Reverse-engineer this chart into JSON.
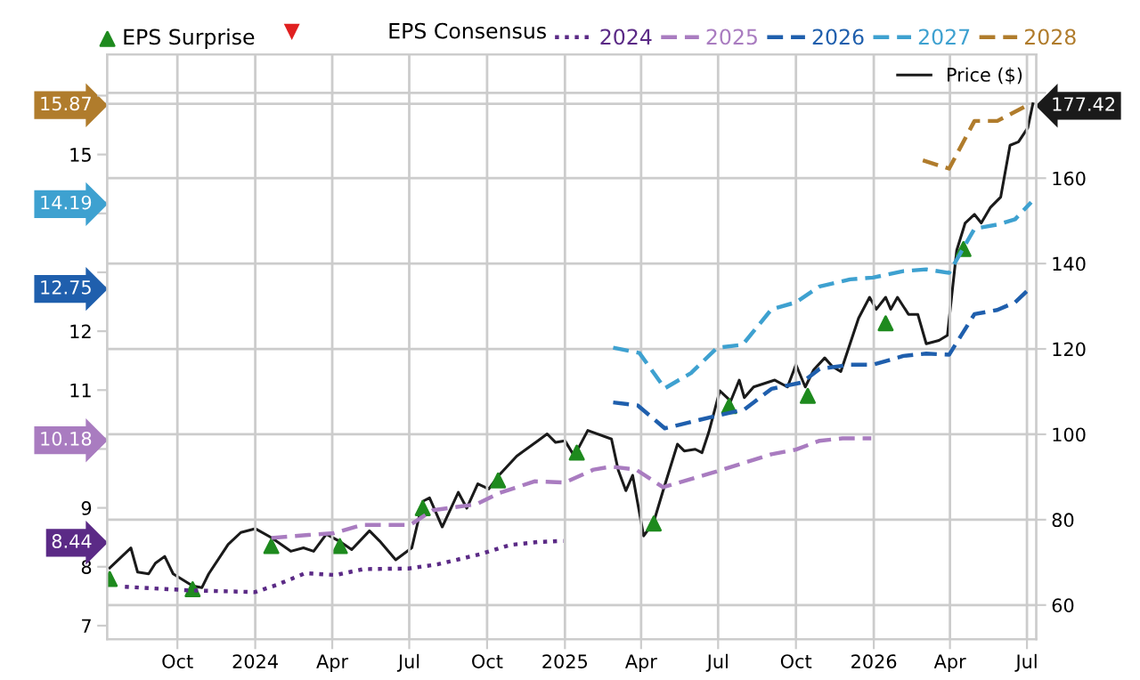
{
  "chart_data": {
    "type": "line",
    "legend": "top",
    "legend_title": "EPS Consensus",
    "grid": true,
    "xlim": [
      "2023-07-10",
      "2026-07-12"
    ],
    "xticks": [
      {
        "value": "2023-10-01",
        "label": "Oct"
      },
      {
        "value": "2024-01-01",
        "label": "2024"
      },
      {
        "value": "2024-04-01",
        "label": "Apr"
      },
      {
        "value": "2024-07-01",
        "label": "Jul"
      },
      {
        "value": "2024-10-01",
        "label": "Oct"
      },
      {
        "value": "2025-01-01",
        "label": "2025"
      },
      {
        "value": "2025-04-01",
        "label": "Apr"
      },
      {
        "value": "2025-07-01",
        "label": "Jul"
      },
      {
        "value": "2025-10-01",
        "label": "Oct"
      },
      {
        "value": "2026-01-01",
        "label": "2026"
      },
      {
        "value": "2026-04-01",
        "label": "Apr"
      },
      {
        "value": "2026-07-01",
        "label": "Jul"
      }
    ],
    "ylim": [
      6.77,
      16.7
    ],
    "yticks": [
      7,
      8,
      {
        "value": 8.44,
        "label": "8.44"
      },
      9,
      {
        "value": 10,
        "label": null
      },
      {
        "value": 10.18,
        "label": "10.18"
      },
      11,
      12,
      {
        "value": 12.75,
        "label": "12.75"
      },
      {
        "value": 13,
        "label": null
      },
      {
        "value": 14,
        "label": null
      },
      {
        "value": 14.19,
        "label": "14.19"
      },
      15,
      {
        "value": 15.87,
        "label": "15.87"
      },
      {
        "value": 16,
        "label": null
      }
    ],
    "y2lim": [
      52,
      189
    ],
    "y2ticks": [
      60,
      80,
      100,
      120,
      140,
      160,
      {
        "value": 177.42,
        "label": "177.42"
      },
      {
        "value": 180,
        "label": null
      }
    ],
    "series": [
      {
        "name": "EPS Surprise",
        "type": "scatter",
        "axis": "y2",
        "marker": "triangle",
        "color": "#1e8a1e",
        "x": [
          "2023-07-13",
          "2023-10-19",
          "2024-01-20",
          "2024-04-10",
          "2024-07-17",
          "2024-10-14",
          "2025-01-15",
          "2025-04-16",
          "2025-07-14",
          "2025-10-15",
          "2026-01-15",
          "2026-04-17"
        ],
        "values": [
          66.1,
          63.7,
          73.8,
          73.8,
          82.7,
          89.2,
          95.7,
          79.1,
          106.6,
          109.0,
          126.0,
          143.4
        ]
      },
      {
        "name": "2024",
        "axis": "y",
        "line_style": "dotted",
        "color": "#5b2a86",
        "x": [
          "2023-07-31",
          "2023-10-15",
          "2024-01-01",
          "2024-01-26",
          "2024-02-29",
          "2024-04-05",
          "2024-05-08",
          "2024-06-30",
          "2024-08-03",
          "2024-09-22",
          "2024-10-28",
          "2024-11-30",
          "2024-12-30"
        ],
        "values": [
          7.66,
          7.6,
          7.57,
          7.69,
          7.89,
          7.86,
          7.96,
          7.97,
          8.04,
          8.21,
          8.37,
          8.42,
          8.44
        ]
      },
      {
        "name": "2025",
        "axis": "y",
        "line_style": "dashed",
        "color": "#a97cc0",
        "x": [
          "2024-01-20",
          "2024-03-04",
          "2024-04-03",
          "2024-05-06",
          "2024-07-02",
          "2024-07-29",
          "2024-09-18",
          "2024-10-15",
          "2024-11-26",
          "2025-01-01",
          "2025-02-04",
          "2025-02-25",
          "2025-03-26",
          "2025-04-27",
          "2025-06-25",
          "2025-09-02",
          "2025-10-01",
          "2025-10-29",
          "2025-11-25",
          "2025-12-29"
        ],
        "values": [
          8.49,
          8.54,
          8.57,
          8.71,
          8.71,
          8.96,
          9.06,
          9.25,
          9.45,
          9.43,
          9.65,
          9.7,
          9.65,
          9.35,
          9.6,
          9.91,
          9.99,
          10.14,
          10.18,
          10.18
        ]
      },
      {
        "name": "2026",
        "axis": "y",
        "line_style": "dashed",
        "color": "#1f5fad",
        "x": [
          "2025-02-27",
          "2025-03-28",
          "2025-04-29",
          "2025-06-25",
          "2025-08-01",
          "2025-09-02",
          "2025-10-08",
          "2025-10-29",
          "2025-12-04",
          "2025-12-31",
          "2026-02-05",
          "2026-03-04",
          "2026-03-31",
          "2026-04-30",
          "2026-05-27",
          "2026-06-17",
          "2026-07-06"
        ],
        "values": [
          10.79,
          10.74,
          10.35,
          10.55,
          10.67,
          11.02,
          11.13,
          11.36,
          11.43,
          11.43,
          11.58,
          11.62,
          11.6,
          12.29,
          12.36,
          12.49,
          12.75
        ]
      },
      {
        "name": "2027",
        "axis": "y",
        "line_style": "dashed",
        "color": "#3ea1d0",
        "x": [
          "2025-02-27",
          "2025-03-30",
          "2025-04-29",
          "2025-05-30",
          "2025-06-30",
          "2025-07-30",
          "2025-09-02",
          "2025-10-01",
          "2025-10-29",
          "2025-12-04",
          "2025-12-31",
          "2026-02-05",
          "2026-03-04",
          "2026-03-31",
          "2026-04-30",
          "2026-05-27",
          "2026-06-17",
          "2026-07-06"
        ],
        "values": [
          11.72,
          11.63,
          11.03,
          11.29,
          11.72,
          11.77,
          12.37,
          12.49,
          12.76,
          12.88,
          12.91,
          13.02,
          13.05,
          12.99,
          13.74,
          13.81,
          13.9,
          14.19
        ]
      },
      {
        "name": "2028",
        "axis": "y",
        "line_style": "dashed",
        "color": "#b07c2c",
        "x": [
          "2026-02-28",
          "2026-03-31",
          "2026-04-30",
          "2026-05-27",
          "2026-07-06"
        ],
        "values": [
          14.9,
          14.76,
          15.57,
          15.57,
          15.87
        ]
      },
      {
        "name": "Price ($)",
        "axis": "y2",
        "line_style": "solid",
        "color": "#1a1a1a",
        "x": [
          "2023-07-13",
          "2023-08-07",
          "2023-08-15",
          "2023-08-28",
          "2023-09-05",
          "2023-09-16",
          "2023-09-26",
          "2023-10-19",
          "2023-10-30",
          "2023-11-07",
          "2023-11-30",
          "2023-12-15",
          "2024-01-01",
          "2024-01-20",
          "2024-02-12",
          "2024-02-27",
          "2024-03-10",
          "2024-03-25",
          "2024-04-09",
          "2024-04-24",
          "2024-05-15",
          "2024-05-27",
          "2024-06-15",
          "2024-07-04",
          "2024-07-17",
          "2024-07-25",
          "2024-08-09",
          "2024-08-28",
          "2024-09-07",
          "2024-09-20",
          "2024-10-03",
          "2024-10-15",
          "2024-11-05",
          "2024-11-30",
          "2024-12-11",
          "2024-12-21",
          "2025-01-01",
          "2025-01-12",
          "2025-01-28",
          "2025-02-25",
          "2025-03-05",
          "2025-03-14",
          "2025-03-22",
          "2025-04-04",
          "2025-04-16",
          "2025-04-27",
          "2025-05-14",
          "2025-05-22",
          "2025-06-04",
          "2025-06-12",
          "2025-06-20",
          "2025-07-03",
          "2025-07-16",
          "2025-07-26",
          "2025-08-01",
          "2025-08-12",
          "2025-09-06",
          "2025-09-21",
          "2025-10-01",
          "2025-10-12",
          "2025-10-22",
          "2025-11-04",
          "2025-11-13",
          "2025-11-23",
          "2025-12-14",
          "2025-12-27",
          "2026-01-04",
          "2026-01-15",
          "2026-01-21",
          "2026-01-29",
          "2026-02-11",
          "2026-02-22",
          "2026-03-04",
          "2026-03-19",
          "2026-03-29",
          "2026-04-09",
          "2026-04-19",
          "2026-04-30",
          "2026-05-08",
          "2026-05-19",
          "2026-05-31",
          "2026-06-11",
          "2026-06-21",
          "2026-07-02",
          "2026-07-08"
        ],
        "values": [
          68.7,
          73.4,
          67.7,
          67.3,
          69.8,
          71.4,
          67.3,
          64.5,
          64.1,
          67.3,
          74.2,
          77.0,
          77.9,
          75.8,
          72.6,
          73.4,
          72.6,
          76.6,
          75.0,
          73.0,
          77.4,
          75.0,
          70.6,
          73.4,
          84.3,
          85.1,
          78.3,
          86.4,
          82.7,
          88.4,
          87.2,
          90.4,
          94.9,
          98.5,
          100.1,
          98.1,
          98.5,
          94.9,
          100.9,
          98.9,
          91.6,
          86.8,
          90.4,
          76.2,
          79.5,
          86.8,
          97.7,
          96.1,
          96.5,
          95.7,
          100.5,
          110.2,
          107.8,
          112.7,
          108.6,
          111.1,
          112.7,
          111.1,
          116.3,
          111.1,
          115.1,
          117.9,
          115.9,
          114.7,
          127.2,
          132.1,
          129.3,
          132.1,
          129.3,
          132.1,
          128.1,
          128.1,
          121.2,
          122.0,
          123.2,
          143.1,
          149.5,
          151.5,
          149.5,
          153.2,
          155.6,
          167.7,
          168.5,
          171.8,
          177.42
        ]
      }
    ]
  }
}
